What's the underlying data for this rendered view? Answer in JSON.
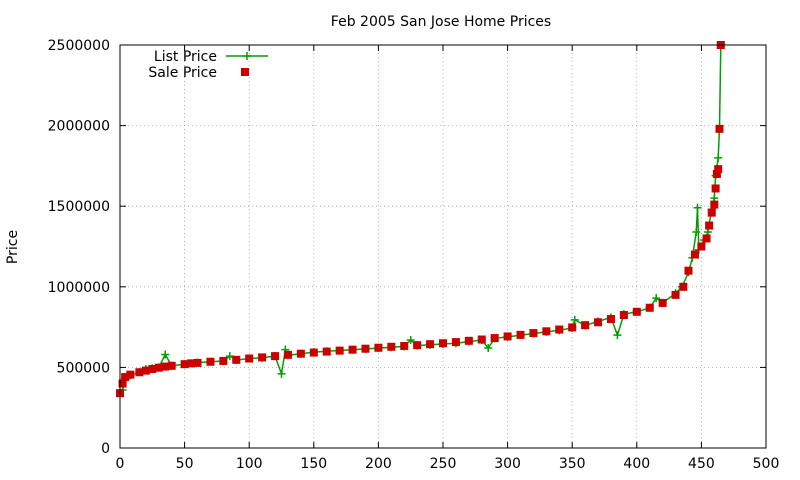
{
  "chart_data": {
    "type": "scatter",
    "title": "Feb 2005 San Jose Home Prices",
    "xlabel": "",
    "ylabel": "Price",
    "xlim": [
      0,
      500
    ],
    "ylim": [
      0,
      2500000
    ],
    "x_ticks": [
      0,
      50,
      100,
      150,
      200,
      250,
      300,
      350,
      400,
      450,
      500
    ],
    "y_ticks": [
      0,
      500000,
      1000000,
      1500000,
      2000000,
      2500000
    ],
    "grid": true,
    "legend_position": "top-left",
    "series": [
      {
        "name": "List Price",
        "style": "line+cross-markers",
        "color": "#00a000",
        "points": [
          [
            0,
            340000
          ],
          [
            2,
            360000
          ],
          [
            4,
            430000
          ],
          [
            8,
            450000
          ],
          [
            15,
            470000
          ],
          [
            20,
            490000
          ],
          [
            25,
            495000
          ],
          [
            30,
            500000
          ],
          [
            35,
            580000
          ],
          [
            40,
            510000
          ],
          [
            50,
            520000
          ],
          [
            55,
            525000
          ],
          [
            60,
            530000
          ],
          [
            70,
            535000
          ],
          [
            80,
            540000
          ],
          [
            85,
            570000
          ],
          [
            90,
            545000
          ],
          [
            100,
            555000
          ],
          [
            110,
            560000
          ],
          [
            120,
            570000
          ],
          [
            125,
            460000
          ],
          [
            128,
            610000
          ],
          [
            130,
            575000
          ],
          [
            140,
            585000
          ],
          [
            150,
            595000
          ],
          [
            160,
            600000
          ],
          [
            170,
            605000
          ],
          [
            180,
            610000
          ],
          [
            190,
            615000
          ],
          [
            200,
            620000
          ],
          [
            210,
            625000
          ],
          [
            220,
            630000
          ],
          [
            225,
            670000
          ],
          [
            230,
            635000
          ],
          [
            240,
            640000
          ],
          [
            250,
            645000
          ],
          [
            260,
            650000
          ],
          [
            270,
            660000
          ],
          [
            280,
            670000
          ],
          [
            285,
            620000
          ],
          [
            290,
            680000
          ],
          [
            300,
            690000
          ],
          [
            310,
            700000
          ],
          [
            320,
            710000
          ],
          [
            330,
            720000
          ],
          [
            340,
            730000
          ],
          [
            350,
            745000
          ],
          [
            352,
            795000
          ],
          [
            360,
            760000
          ],
          [
            370,
            785000
          ],
          [
            380,
            810000
          ],
          [
            385,
            700000
          ],
          [
            390,
            830000
          ],
          [
            400,
            845000
          ],
          [
            410,
            870000
          ],
          [
            415,
            930000
          ],
          [
            420,
            900000
          ],
          [
            430,
            960000
          ],
          [
            435,
            1000000
          ],
          [
            440,
            1090000
          ],
          [
            443,
            1180000
          ],
          [
            446,
            1340000
          ],
          [
            447,
            1490000
          ],
          [
            448,
            1230000
          ],
          [
            452,
            1290000
          ],
          [
            455,
            1340000
          ],
          [
            458,
            1480000
          ],
          [
            460,
            1550000
          ],
          [
            461,
            1690000
          ],
          [
            463,
            1800000
          ],
          [
            464,
            1980000
          ],
          [
            465,
            2500000
          ]
        ]
      },
      {
        "name": "Sale Price",
        "style": "square-markers",
        "color": "#cc0000",
        "points": [
          [
            0,
            340000
          ],
          [
            2,
            400000
          ],
          [
            4,
            440000
          ],
          [
            8,
            455000
          ],
          [
            15,
            470000
          ],
          [
            20,
            480000
          ],
          [
            25,
            490000
          ],
          [
            30,
            498000
          ],
          [
            35,
            505000
          ],
          [
            40,
            510000
          ],
          [
            50,
            520000
          ],
          [
            55,
            525000
          ],
          [
            60,
            528000
          ],
          [
            70,
            535000
          ],
          [
            80,
            540000
          ],
          [
            90,
            547000
          ],
          [
            100,
            555000
          ],
          [
            110,
            562000
          ],
          [
            120,
            570000
          ],
          [
            130,
            578000
          ],
          [
            140,
            585000
          ],
          [
            150,
            592000
          ],
          [
            160,
            598000
          ],
          [
            170,
            604000
          ],
          [
            180,
            610000
          ],
          [
            190,
            616000
          ],
          [
            200,
            622000
          ],
          [
            210,
            628000
          ],
          [
            220,
            633000
          ],
          [
            230,
            638000
          ],
          [
            240,
            644000
          ],
          [
            250,
            650000
          ],
          [
            260,
            657000
          ],
          [
            270,
            665000
          ],
          [
            280,
            673000
          ],
          [
            290,
            682000
          ],
          [
            300,
            692000
          ],
          [
            310,
            702000
          ],
          [
            320,
            713000
          ],
          [
            330,
            724000
          ],
          [
            340,
            735000
          ],
          [
            350,
            748000
          ],
          [
            360,
            762000
          ],
          [
            370,
            780000
          ],
          [
            380,
            800000
          ],
          [
            390,
            825000
          ],
          [
            400,
            845000
          ],
          [
            410,
            870000
          ],
          [
            420,
            900000
          ],
          [
            430,
            950000
          ],
          [
            436,
            1000000
          ],
          [
            440,
            1100000
          ],
          [
            445,
            1200000
          ],
          [
            450,
            1250000
          ],
          [
            454,
            1300000
          ],
          [
            456,
            1380000
          ],
          [
            458,
            1460000
          ],
          [
            460,
            1510000
          ],
          [
            461,
            1610000
          ],
          [
            462,
            1700000
          ],
          [
            463,
            1730000
          ],
          [
            464,
            1980000
          ],
          [
            465,
            2500000
          ]
        ]
      }
    ]
  }
}
